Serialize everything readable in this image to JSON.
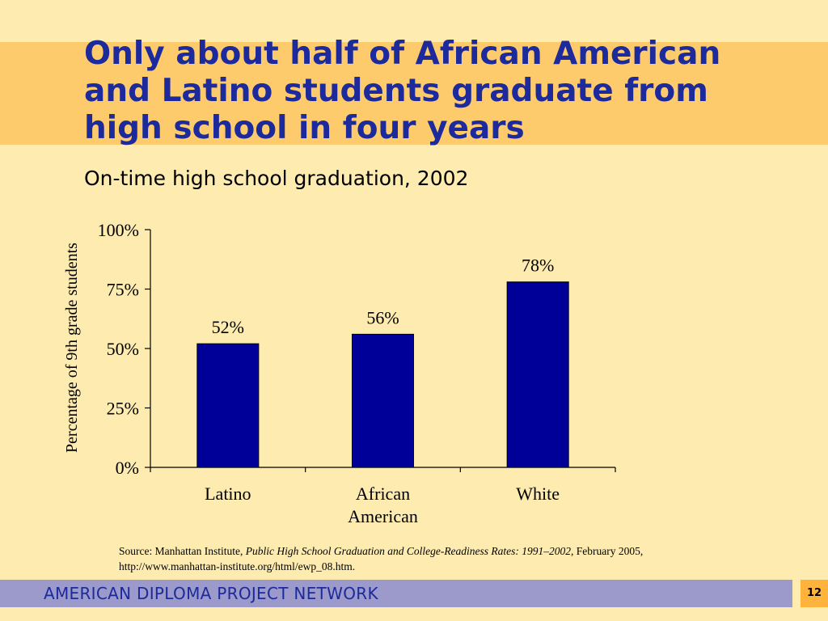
{
  "slide": {
    "title": "Only about half of African American and Latino students graduate from high school in four years",
    "subtitle": "On-time high school graduation, 2002",
    "source_prefix": "Source: Manhattan Institute, ",
    "source_italic": "Public High School Graduation and College-Readiness Rates: 1991–2002",
    "source_suffix": ", February 2005,",
    "source_url": "http://www.manhattan-institute.org/html/ewp_08.htm.",
    "footer": "AMERICAN DIPLOMA PROJECT NETWORK",
    "page_number": "12"
  },
  "colors": {
    "background": "#FEEBB0",
    "title_band": "#FECB6C",
    "title_text": "#1C2A9C",
    "bar_fill": "#000099",
    "footer_band": "#9B9ACA",
    "page_badge": "#FEB43C"
  },
  "chart_data": {
    "type": "bar",
    "categories": [
      "Latino",
      "African American",
      "White"
    ],
    "category_lines": [
      [
        "Latino"
      ],
      [
        "African",
        "American"
      ],
      [
        "White"
      ]
    ],
    "values": [
      52,
      56,
      78
    ],
    "data_labels": [
      "52%",
      "56%",
      "78%"
    ],
    "ylabel": "Percentage of 9th grade students",
    "ylim": [
      0,
      100
    ],
    "yticks": [
      0,
      25,
      50,
      75,
      100
    ],
    "ytick_labels": [
      "0%",
      "25%",
      "50%",
      "75%",
      "100%"
    ],
    "grid": false,
    "legend": "none"
  }
}
